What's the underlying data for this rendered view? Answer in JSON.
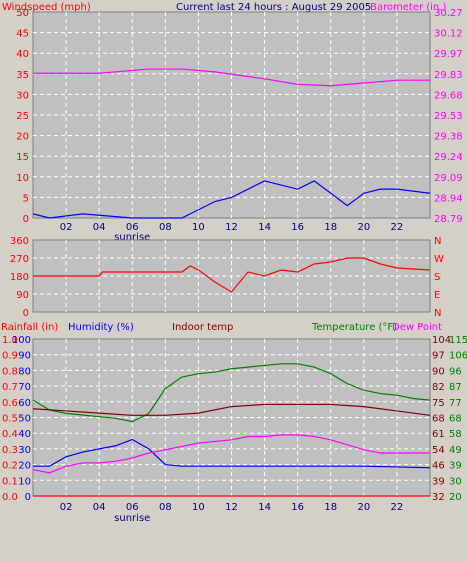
{
  "header": {
    "windspeed_label": "Windspeed (mph)",
    "title": "Current last 24 hours : August 29 2005",
    "barometer_label": "Barometer (in.)"
  },
  "mid_header": {
    "rainfall_label": "Rainfall (in)",
    "humidity_label": "Humidity (%)",
    "indoor_label": "Indoor temp",
    "temperature_label": "Temperature (°F)",
    "dewpoint_label": "Dew Point"
  },
  "colors": {
    "plot_bg": "#c0c0c0",
    "grid": "#ffffff",
    "wind_gust": "#ff0000",
    "wind_avg": "#0000ff",
    "barometer": "#ff00ff",
    "direction": "#ff0000",
    "humidity": "#0000ff",
    "rainfall": "#ff0000",
    "indoor": "#800000",
    "temperature": "#008000",
    "dewpoint": "#ff00ff",
    "title": "#000080"
  },
  "chart_data": [
    {
      "type": "line",
      "name": "wind-barometer",
      "x_ticks": [
        "02",
        "04",
        "06",
        "08",
        "10",
        "12",
        "14",
        "16",
        "18",
        "20",
        "22"
      ],
      "annotation": "sunrise",
      "wind_axis": {
        "ticks": [
          "0",
          "5",
          "10",
          "15",
          "20",
          "25",
          "30",
          "35",
          "40",
          "45",
          "50"
        ],
        "range": [
          0,
          50
        ]
      },
      "barometer_axis": {
        "ticks": [
          "28.79",
          "28.94",
          "29.09",
          "29.24",
          "29.38",
          "29.53",
          "29.68",
          "29.83",
          "29.97",
          "30.12",
          "30.27"
        ],
        "range": [
          28.79,
          30.27
        ]
      },
      "series": [
        {
          "name": "Barometer",
          "values": [
            [
              0,
              29.83
            ],
            [
              4,
              29.83
            ],
            [
              7,
              29.86
            ],
            [
              9,
              29.86
            ],
            [
              11,
              29.84
            ],
            [
              14,
              29.79
            ],
            [
              16,
              29.75
            ],
            [
              18,
              29.74
            ],
            [
              20,
              29.76
            ],
            [
              22,
              29.78
            ],
            [
              24,
              29.78
            ]
          ]
        },
        {
          "name": "Windspeed",
          "values": [
            [
              0,
              1
            ],
            [
              1,
              0
            ],
            [
              3,
              1
            ],
            [
              6,
              0
            ],
            [
              9,
              0
            ],
            [
              10,
              2
            ],
            [
              11,
              4
            ],
            [
              12,
              5
            ],
            [
              13,
              7
            ],
            [
              14,
              9
            ],
            [
              15,
              8
            ],
            [
              16,
              7
            ],
            [
              17,
              9
            ],
            [
              18,
              6
            ],
            [
              19,
              3
            ],
            [
              20,
              6
            ],
            [
              21,
              7
            ],
            [
              22,
              7
            ],
            [
              24,
              6
            ]
          ]
        }
      ]
    },
    {
      "type": "line",
      "name": "wind-direction",
      "left_ticks": [
        "0",
        "90",
        "180",
        "270",
        "360"
      ],
      "right_ticks": [
        "N",
        "E",
        "S",
        "W",
        "N"
      ],
      "range": [
        0,
        360
      ],
      "series": [
        {
          "name": "Direction",
          "values": [
            [
              0,
              180
            ],
            [
              4,
              180
            ],
            [
              4.2,
              200
            ],
            [
              9,
              200
            ],
            [
              9.5,
              230
            ],
            [
              10,
              210
            ],
            [
              11,
              150
            ],
            [
              12,
              100
            ],
            [
              13,
              200
            ],
            [
              14,
              180
            ],
            [
              15,
              210
            ],
            [
              16,
              200
            ],
            [
              17,
              240
            ],
            [
              18,
              250
            ],
            [
              19,
              270
            ],
            [
              20,
              270
            ],
            [
              21,
              240
            ],
            [
              22,
              220
            ],
            [
              24,
              210
            ]
          ]
        }
      ]
    },
    {
      "type": "line",
      "name": "temp-humidity-rain",
      "rain_axis": {
        "ticks": [
          "0.0",
          "0.1",
          "0.2",
          "0.3",
          "0.4",
          "0.5",
          "0.6",
          "0.7",
          "0.8",
          "0.9",
          "1.0"
        ],
        "range": [
          0,
          1.0
        ]
      },
      "humidity_axis": {
        "ticks": [
          "0",
          "10",
          "20",
          "30",
          "40",
          "50",
          "60",
          "70",
          "80",
          "90",
          "100"
        ],
        "range": [
          0,
          100
        ]
      },
      "indoor_axis": {
        "ticks": [
          "32",
          "39",
          "46",
          "54",
          "61",
          "68",
          "75",
          "82",
          "90",
          "97",
          "104"
        ],
        "range": [
          32,
          104
        ]
      },
      "temp_axis": {
        "ticks": [
          "20",
          "30",
          "39",
          "49",
          "58",
          "68",
          "77",
          "87",
          "96",
          "106",
          "115"
        ],
        "range": [
          20,
          115
        ]
      },
      "series": [
        {
          "name": "Temperature",
          "values": [
            [
              0,
              78
            ],
            [
              1,
              72
            ],
            [
              2,
              70
            ],
            [
              3,
              69
            ],
            [
              4,
              68
            ],
            [
              5,
              67
            ],
            [
              6,
              65
            ],
            [
              7,
              70
            ],
            [
              8,
              85
            ],
            [
              9,
              92
            ],
            [
              10,
              94
            ],
            [
              11,
              95
            ],
            [
              12,
              97
            ],
            [
              13,
              98
            ],
            [
              14,
              99
            ],
            [
              15,
              100
            ],
            [
              16,
              100
            ],
            [
              17,
              98
            ],
            [
              18,
              94
            ],
            [
              19,
              88
            ],
            [
              20,
              84
            ],
            [
              21,
              82
            ],
            [
              22,
              81
            ],
            [
              23,
              79
            ],
            [
              24,
              78
            ]
          ]
        },
        {
          "name": "Indoor temp",
          "values": [
            [
              0,
              72
            ],
            [
              2,
              71
            ],
            [
              4,
              70
            ],
            [
              6,
              69
            ],
            [
              8,
              69
            ],
            [
              10,
              70
            ],
            [
              12,
              73
            ],
            [
              14,
              74
            ],
            [
              16,
              74
            ],
            [
              18,
              74
            ],
            [
              20,
              73
            ],
            [
              22,
              71
            ],
            [
              24,
              69
            ]
          ]
        },
        {
          "name": "Humidity",
          "values": [
            [
              0,
              19
            ],
            [
              1,
              19
            ],
            [
              2,
              25
            ],
            [
              3,
              28
            ],
            [
              4,
              30
            ],
            [
              5,
              32
            ],
            [
              6,
              36
            ],
            [
              7,
              30
            ],
            [
              8,
              20
            ],
            [
              9,
              19
            ],
            [
              12,
              19
            ],
            [
              16,
              19
            ],
            [
              20,
              19
            ],
            [
              24,
              18
            ]
          ]
        },
        {
          "name": "Dew Point",
          "values": [
            [
              0,
              36
            ],
            [
              1,
              34
            ],
            [
              2,
              38
            ],
            [
              3,
              40
            ],
            [
              4,
              40
            ],
            [
              5,
              41
            ],
            [
              6,
              43
            ],
            [
              7,
              46
            ],
            [
              8,
              48
            ],
            [
              9,
              50
            ],
            [
              10,
              52
            ],
            [
              11,
              53
            ],
            [
              12,
              54
            ],
            [
              13,
              56
            ],
            [
              14,
              56
            ],
            [
              15,
              57
            ],
            [
              16,
              57
            ],
            [
              17,
              56
            ],
            [
              18,
              54
            ],
            [
              19,
              51
            ],
            [
              20,
              48
            ],
            [
              21,
              46
            ],
            [
              22,
              46
            ],
            [
              23,
              46
            ],
            [
              24,
              46
            ]
          ]
        },
        {
          "name": "Rainfall",
          "values": [
            [
              0,
              0
            ],
            [
              24,
              0
            ]
          ]
        }
      ]
    }
  ]
}
